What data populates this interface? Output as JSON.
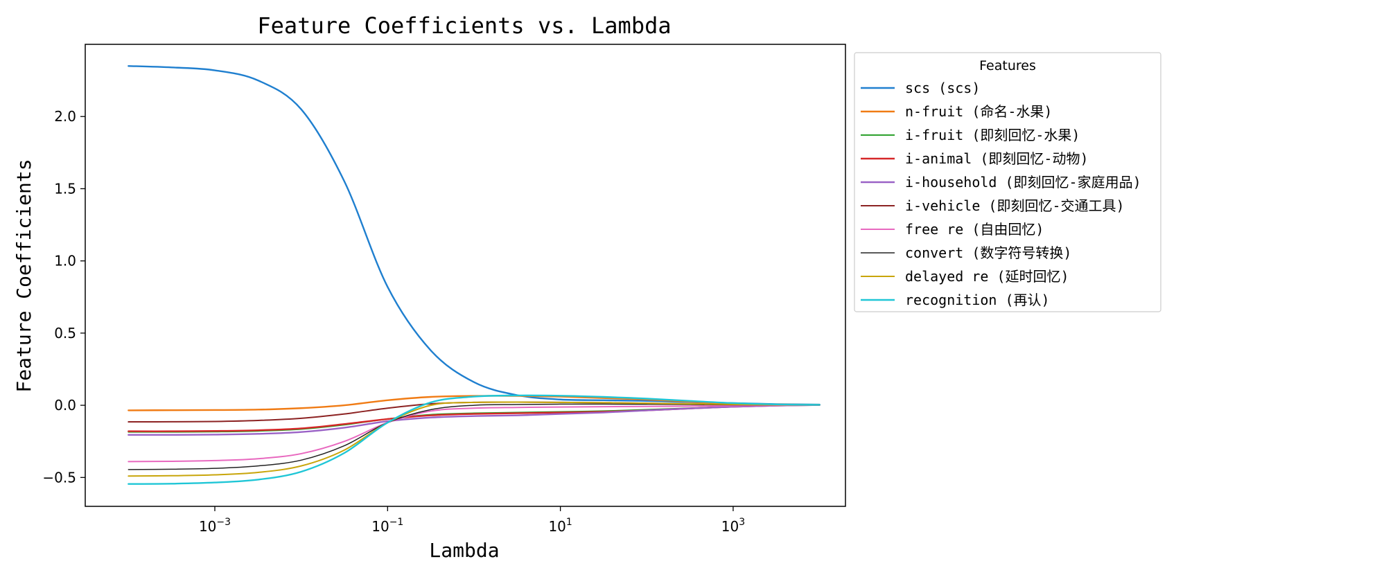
{
  "chart_data": {
    "type": "line",
    "title": "Feature Coefficients vs. Lambda",
    "xlabel": "Lambda",
    "ylabel": "Feature Coefficients",
    "xscale": "log",
    "xlim_log10": [
      -4.5,
      4.3
    ],
    "ylim": [
      -0.7,
      2.5
    ],
    "x_ticks": [
      {
        "base": "10",
        "exp": "−3",
        "value_log10": -3
      },
      {
        "base": "10",
        "exp": "−1",
        "value_log10": -1
      },
      {
        "base": "10",
        "exp": "1",
        "value_log10": 1
      },
      {
        "base": "10",
        "exp": "3",
        "value_log10": 3
      }
    ],
    "y_ticks": [
      {
        "label": "−0.5",
        "value": -0.5
      },
      {
        "label": "0.0",
        "value": 0.0
      },
      {
        "label": "0.5",
        "value": 0.5
      },
      {
        "label": "1.0",
        "value": 1.0
      },
      {
        "label": "1.5",
        "value": 1.5
      },
      {
        "label": "2.0",
        "value": 2.0
      }
    ],
    "x_log10": [
      -4.0,
      -3.5,
      -3.0,
      -2.5,
      -2.0,
      -1.5,
      -1.0,
      -0.5,
      0.0,
      0.5,
      1.0,
      1.5,
      2.0,
      2.5,
      3.0,
      3.5,
      4.0
    ],
    "legend": {
      "title": "Features",
      "position": "outside-right"
    },
    "series": [
      {
        "name": "scs (scs)",
        "color": "#1f7fcf",
        "width": 2.4,
        "values": [
          2.35,
          2.34,
          2.32,
          2.25,
          2.05,
          1.55,
          0.82,
          0.38,
          0.16,
          0.07,
          0.04,
          0.035,
          0.03,
          0.022,
          0.015,
          0.008,
          0.005
        ]
      },
      {
        "name": "n-fruit (命名-水果)",
        "color": "#f07b14",
        "width": 2.4,
        "values": [
          -0.035,
          -0.034,
          -0.033,
          -0.03,
          -0.02,
          0.0,
          0.035,
          0.058,
          0.065,
          0.065,
          0.06,
          0.05,
          0.04,
          0.025,
          0.012,
          0.006,
          0.003
        ]
      },
      {
        "name": "i-fruit (即刻回忆-水果)",
        "color": "#2ca02c",
        "width": 2.0,
        "values": [
          -0.185,
          -0.185,
          -0.183,
          -0.178,
          -0.165,
          -0.135,
          -0.095,
          -0.065,
          -0.055,
          -0.05,
          -0.045,
          -0.04,
          -0.03,
          -0.02,
          -0.008,
          0.0,
          0.002
        ]
      },
      {
        "name": "i-animal (即刻回忆-动物)",
        "color": "#d62728",
        "width": 2.4,
        "values": [
          -0.18,
          -0.18,
          -0.178,
          -0.173,
          -0.16,
          -0.13,
          -0.095,
          -0.07,
          -0.06,
          -0.055,
          -0.05,
          -0.045,
          -0.035,
          -0.022,
          -0.01,
          -0.002,
          0.002
        ]
      },
      {
        "name": "i-household (即刻回忆-家庭用品)",
        "color": "#9a62c6",
        "width": 2.4,
        "values": [
          -0.205,
          -0.205,
          -0.203,
          -0.198,
          -0.185,
          -0.155,
          -0.11,
          -0.085,
          -0.075,
          -0.07,
          -0.06,
          -0.05,
          -0.035,
          -0.022,
          -0.01,
          -0.002,
          0.002
        ]
      },
      {
        "name": "i-vehicle (即刻回忆-交通工具)",
        "color": "#8c2222",
        "width": 2.0,
        "values": [
          -0.115,
          -0.114,
          -0.112,
          -0.105,
          -0.09,
          -0.06,
          -0.02,
          0.01,
          0.02,
          0.022,
          0.02,
          0.018,
          0.014,
          0.01,
          0.006,
          0.003,
          0.002
        ]
      },
      {
        "name": "free re (自由回忆)",
        "color": "#e868bf",
        "width": 2.0,
        "values": [
          -0.39,
          -0.388,
          -0.383,
          -0.37,
          -0.335,
          -0.25,
          -0.12,
          -0.04,
          -0.02,
          -0.015,
          -0.012,
          -0.01,
          -0.008,
          -0.006,
          -0.003,
          0.0,
          0.002
        ]
      },
      {
        "name": "convert (数字符号转换)",
        "color": "#222222",
        "width": 1.5,
        "values": [
          -0.445,
          -0.443,
          -0.437,
          -0.42,
          -0.38,
          -0.28,
          -0.12,
          -0.03,
          0.0,
          0.005,
          0.008,
          0.008,
          0.007,
          0.005,
          0.003,
          0.002,
          0.002
        ]
      },
      {
        "name": "delayed re (延时回忆)",
        "color": "#c8a50a",
        "width": 2.0,
        "values": [
          -0.49,
          -0.488,
          -0.482,
          -0.465,
          -0.42,
          -0.31,
          -0.12,
          0.0,
          0.02,
          0.022,
          0.02,
          0.018,
          0.014,
          0.01,
          0.006,
          0.003,
          0.002
        ]
      },
      {
        "name": "recognition (再认)",
        "color": "#1fc6d6",
        "width": 2.4,
        "values": [
          -0.545,
          -0.543,
          -0.535,
          -0.515,
          -0.46,
          -0.33,
          -0.12,
          0.02,
          0.06,
          0.068,
          0.066,
          0.058,
          0.046,
          0.03,
          0.015,
          0.006,
          0.003
        ]
      }
    ]
  }
}
